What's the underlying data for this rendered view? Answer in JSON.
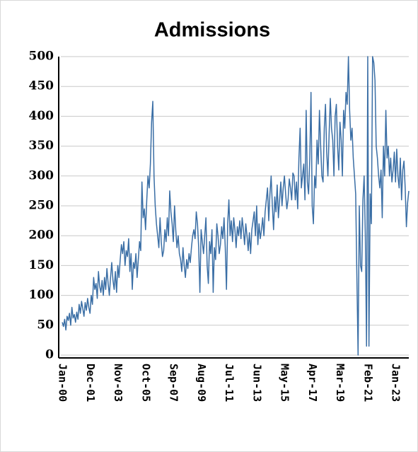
{
  "chart_data": {
    "type": "line",
    "title": "Admissions",
    "categories": [
      "Jan-00",
      null,
      null,
      null,
      null,
      null,
      null,
      null,
      null,
      null,
      null,
      null,
      null,
      null,
      null,
      null,
      null,
      null,
      null,
      null,
      null,
      null,
      null,
      "Dec-01",
      null,
      null,
      null,
      null,
      null,
      null,
      null,
      null,
      null,
      null,
      null,
      null,
      null,
      null,
      null,
      null,
      null,
      null,
      null,
      null,
      null,
      null,
      "Nov-03",
      null,
      null,
      null,
      null,
      null,
      null,
      null,
      null,
      null,
      null,
      null,
      null,
      null,
      null,
      null,
      null,
      null,
      null,
      null,
      null,
      null,
      null,
      "Oct-05",
      null,
      null,
      null,
      null,
      null,
      null,
      null,
      null,
      null,
      null,
      null,
      null,
      null,
      null,
      null,
      null,
      null,
      null,
      null,
      null,
      null,
      null,
      "Sep-07",
      null,
      null,
      null,
      null,
      null,
      null,
      null,
      null,
      null,
      null,
      null,
      null,
      null,
      null,
      null,
      null,
      null,
      null,
      null,
      null,
      null,
      null,
      "Aug-09",
      null,
      null,
      null,
      null,
      null,
      null,
      null,
      null,
      null,
      null,
      null,
      null,
      null,
      null,
      null,
      null,
      null,
      null,
      null,
      null,
      null,
      null,
      "Jul-11",
      null,
      null,
      null,
      null,
      null,
      null,
      null,
      null,
      null,
      null,
      null,
      null,
      null,
      null,
      null,
      null,
      null,
      null,
      null,
      null,
      null,
      null,
      "Jun-13",
      null,
      null,
      null,
      null,
      null,
      null,
      null,
      null,
      null,
      null,
      null,
      null,
      null,
      null,
      null,
      null,
      null,
      null,
      null,
      null,
      null,
      null,
      "May-15",
      null,
      null,
      null,
      null,
      null,
      null,
      null,
      null,
      null,
      null,
      null,
      null,
      null,
      null,
      null,
      null,
      null,
      null,
      null,
      null,
      null,
      null,
      "Apr-17",
      null,
      null,
      null,
      null,
      null,
      null,
      null,
      null,
      null,
      null,
      null,
      null,
      null,
      null,
      null,
      null,
      null,
      null,
      null,
      null,
      null,
      null,
      "Mar-19",
      null,
      null,
      null,
      null,
      null,
      null,
      null,
      null,
      null,
      null,
      null,
      null,
      null,
      null,
      null,
      null,
      null,
      null,
      null,
      null,
      null,
      null,
      "Feb-21",
      null,
      null,
      null,
      null,
      null,
      null,
      null,
      null,
      null,
      null,
      null,
      null,
      null,
      null,
      null,
      null,
      null,
      null,
      null,
      null,
      null,
      null,
      "Jan-23",
      null,
      null,
      null,
      null,
      null,
      null,
      null,
      null,
      null,
      null,
      null
    ],
    "values": [
      55,
      48,
      60,
      42,
      65,
      58,
      70,
      50,
      80,
      62,
      68,
      55,
      72,
      60,
      85,
      70,
      90,
      78,
      65,
      88,
      75,
      95,
      80,
      70,
      100,
      85,
      130,
      110,
      120,
      95,
      140,
      115,
      105,
      125,
      100,
      130,
      110,
      145,
      120,
      100,
      130,
      155,
      125,
      110,
      140,
      105,
      150,
      130,
      160,
      185,
      170,
      190,
      150,
      175,
      165,
      195,
      140,
      170,
      110,
      155,
      145,
      170,
      130,
      160,
      190,
      175,
      290,
      230,
      245,
      210,
      260,
      300,
      280,
      320,
      390,
      425,
      300,
      250,
      220,
      200,
      180,
      230,
      190,
      165,
      175,
      210,
      190,
      230,
      200,
      275,
      240,
      220,
      190,
      250,
      210,
      180,
      200,
      170,
      160,
      140,
      180,
      150,
      130,
      160,
      145,
      170,
      155,
      180,
      200,
      210,
      195,
      240,
      220,
      180,
      105,
      210,
      190,
      170,
      200,
      230,
      150,
      120,
      190,
      170,
      210,
      105,
      180,
      160,
      220,
      200,
      170,
      185,
      215,
      195,
      230,
      180,
      110,
      220,
      260,
      200,
      225,
      190,
      230,
      210,
      180,
      215,
      200,
      225,
      195,
      230,
      210,
      185,
      220,
      200,
      175,
      205,
      170,
      210,
      225,
      240,
      200,
      250,
      185,
      220,
      195,
      210,
      230,
      200,
      240,
      260,
      280,
      225,
      270,
      300,
      250,
      210,
      265,
      240,
      285,
      230,
      260,
      290,
      250,
      280,
      300,
      270,
      245,
      260,
      295,
      280,
      260,
      305,
      300,
      260,
      290,
      245,
      330,
      380,
      280,
      300,
      320,
      260,
      410,
      290,
      270,
      330,
      440,
      250,
      220,
      300,
      280,
      360,
      320,
      410,
      350,
      300,
      290,
      380,
      420,
      340,
      300,
      370,
      430,
      380,
      360,
      300,
      400,
      420,
      350,
      310,
      390,
      360,
      300,
      410,
      380,
      440,
      420,
      500,
      410,
      360,
      380,
      330,
      300,
      270,
      130,
      0,
      250,
      150,
      140,
      260,
      300,
      200,
      15,
      500,
      15,
      270,
      220,
      500,
      490,
      460,
      350,
      330,
      300,
      280,
      310,
      230,
      350,
      300,
      410,
      330,
      350,
      300,
      330,
      290,
      310,
      340,
      290,
      345,
      300,
      280,
      330,
      260,
      310,
      325,
      280,
      215,
      255,
      275
    ],
    "color": "#3a6ea5",
    "ylim": [
      0,
      500
    ],
    "yticks": [
      0,
      50,
      100,
      150,
      200,
      250,
      300,
      350,
      400,
      450,
      500
    ],
    "grid": true
  }
}
